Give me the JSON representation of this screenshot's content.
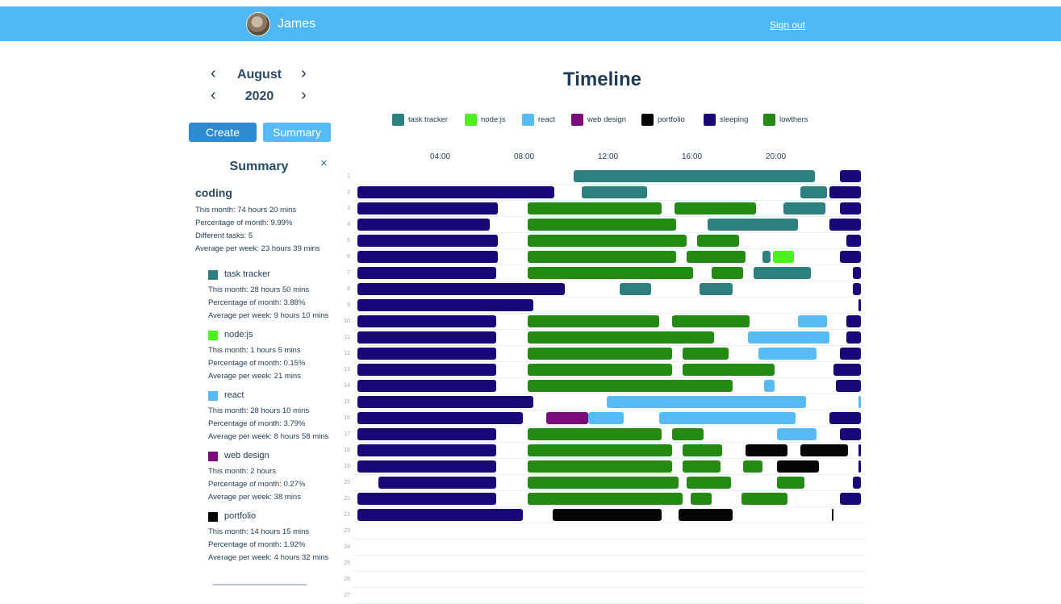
{
  "header": {
    "username": "James",
    "sign_out": "Sign out"
  },
  "sidebar": {
    "month": "August",
    "year": "2020",
    "prev_icon": "‹",
    "next_icon": "›",
    "create_label": "Create",
    "summary_label": "Summary",
    "summary_title": "Summary",
    "close_icon": "×",
    "category": {
      "name": "coding",
      "this_month": "This month: 74 hours 20 mins",
      "percentage": "Percentage of month: 9.99%",
      "different_tasks": "Different tasks: 5",
      "avg_week": "Average per week: 23 hours 39 mins"
    },
    "projects": [
      {
        "name": "task tracker",
        "color": "#2e8080",
        "this_month": "This month: 28 hours 50 mins",
        "percentage": "Percentage of month: 3.88%",
        "avg_week": "Average per week: 9 hours 10 mins"
      },
      {
        "name": "node:js",
        "color": "#4cf21b",
        "this_month": "This month: 1 hours 5 mins",
        "percentage": "Percentage of month: 0.15%",
        "avg_week": "Average per week: 21 mins"
      },
      {
        "name": "react",
        "color": "#55bbf5",
        "this_month": "This month: 28 hours 10 mins",
        "percentage": "Percentage of month: 3.79%",
        "avg_week": "Average per week: 8 hours 58 mins"
      },
      {
        "name": "web design",
        "color": "#7d0a7d",
        "this_month": "This month: 2 hours",
        "percentage": "Percentage of month: 0.27%",
        "avg_week": "Average per week: 38 mins"
      },
      {
        "name": "portfolio",
        "color": "#050505",
        "this_month": "This month: 14 hours 15 mins",
        "percentage": "Percentage of month: 1.92%",
        "avg_week": "Average per week: 4 hours 32 mins"
      }
    ]
  },
  "main": {
    "title": "Timeline",
    "legend": [
      {
        "name": "task tracker",
        "color": "#2e8080"
      },
      {
        "name": "node:js",
        "color": "#4cf21b"
      },
      {
        "name": "react",
        "color": "#55bbf5"
      },
      {
        "name": "web design",
        "color": "#7d0a7d"
      },
      {
        "name": "portfolio",
        "color": "#050505"
      },
      {
        "name": "sleeping",
        "color": "#17087a"
      },
      {
        "name": "lowthers",
        "color": "#238a12"
      }
    ],
    "hour_labels": [
      "04:00",
      "08:00",
      "12:00",
      "16:00",
      "20:00"
    ]
  },
  "chart_data": {
    "type": "bar",
    "x_unit": "hour of day",
    "xlim": [
      0,
      24.5
    ],
    "days": [
      {
        "day": 1,
        "blocks": [
          [
            "task tracker",
            10.3,
            21.8
          ],
          [
            "sleeping",
            23.0,
            24.0
          ]
        ]
      },
      {
        "day": 2,
        "blocks": [
          [
            "sleeping",
            0.0,
            9.4
          ],
          [
            "task tracker",
            10.7,
            13.8
          ],
          [
            "task tracker",
            21.1,
            22.4
          ],
          [
            "sleeping",
            22.5,
            24.0
          ]
        ]
      },
      {
        "day": 3,
        "blocks": [
          [
            "sleeping",
            0.0,
            6.7
          ],
          [
            "lowthers",
            8.1,
            14.5
          ],
          [
            "lowthers",
            15.1,
            19.0
          ],
          [
            "task tracker",
            20.3,
            22.3
          ],
          [
            "sleeping",
            23.0,
            24.0
          ]
        ]
      },
      {
        "day": 4,
        "blocks": [
          [
            "sleeping",
            0.0,
            6.3
          ],
          [
            "lowthers",
            8.1,
            15.2
          ],
          [
            "task tracker",
            16.7,
            21.0
          ],
          [
            "sleeping",
            22.5,
            24.0
          ]
        ]
      },
      {
        "day": 5,
        "blocks": [
          [
            "sleeping",
            0.0,
            6.7
          ],
          [
            "lowthers",
            8.1,
            15.7
          ],
          [
            "lowthers",
            16.2,
            18.2
          ],
          [
            "sleeping",
            23.3,
            24.0
          ]
        ]
      },
      {
        "day": 6,
        "blocks": [
          [
            "sleeping",
            0.0,
            6.7
          ],
          [
            "lowthers",
            8.1,
            15.2
          ],
          [
            "lowthers",
            15.7,
            18.5
          ],
          [
            "task tracker",
            19.3,
            19.7
          ],
          [
            "node:js",
            19.8,
            20.8
          ],
          [
            "sleeping",
            23.0,
            24.0
          ]
        ]
      },
      {
        "day": 7,
        "blocks": [
          [
            "sleeping",
            0.0,
            6.6
          ],
          [
            "lowthers",
            8.1,
            16.0
          ],
          [
            "lowthers",
            16.9,
            18.4
          ],
          [
            "task tracker",
            18.9,
            21.6
          ],
          [
            "sleeping",
            23.6,
            24.0
          ]
        ]
      },
      {
        "day": 8,
        "blocks": [
          [
            "sleeping",
            0.0,
            9.9
          ],
          [
            "task tracker",
            12.5,
            14.0
          ],
          [
            "task tracker",
            16.3,
            17.9
          ],
          [
            "sleeping",
            23.6,
            24.0
          ]
        ]
      },
      {
        "day": 9,
        "blocks": [
          [
            "sleeping",
            0.0,
            8.4
          ],
          [
            "sleeping",
            23.9,
            24.0
          ]
        ]
      },
      {
        "day": 10,
        "blocks": [
          [
            "sleeping",
            0.0,
            6.6
          ],
          [
            "lowthers",
            8.1,
            14.4
          ],
          [
            "lowthers",
            15.0,
            18.7
          ],
          [
            "react",
            21.0,
            22.4
          ],
          [
            "sleeping",
            23.3,
            24.0
          ]
        ]
      },
      {
        "day": 11,
        "blocks": [
          [
            "sleeping",
            0.0,
            6.6
          ],
          [
            "lowthers",
            8.1,
            17.0
          ],
          [
            "react",
            18.6,
            22.5
          ],
          [
            "sleeping",
            23.3,
            24.0
          ]
        ]
      },
      {
        "day": 12,
        "blocks": [
          [
            "sleeping",
            0.0,
            6.6
          ],
          [
            "lowthers",
            8.1,
            15.0
          ],
          [
            "lowthers",
            15.5,
            17.7
          ],
          [
            "react",
            19.1,
            21.9
          ],
          [
            "sleeping",
            23.0,
            24.0
          ]
        ]
      },
      {
        "day": 13,
        "blocks": [
          [
            "sleeping",
            0.0,
            6.6
          ],
          [
            "lowthers",
            8.1,
            15.0
          ],
          [
            "lowthers",
            15.5,
            19.9
          ],
          [
            "sleeping",
            22.7,
            24.0
          ]
        ]
      },
      {
        "day": 14,
        "blocks": [
          [
            "sleeping",
            0.0,
            6.6
          ],
          [
            "lowthers",
            8.1,
            17.9
          ],
          [
            "react",
            19.4,
            19.9
          ],
          [
            "sleeping",
            22.8,
            24.0
          ]
        ]
      },
      {
        "day": 15,
        "blocks": [
          [
            "sleeping",
            0.0,
            8.4
          ],
          [
            "react",
            11.9,
            21.4
          ],
          [
            "react",
            23.9,
            24.0
          ]
        ]
      },
      {
        "day": 16,
        "blocks": [
          [
            "sleeping",
            0.0,
            7.9
          ],
          [
            "web design",
            9.0,
            11.0
          ],
          [
            "react",
            11.0,
            12.7
          ],
          [
            "react",
            14.4,
            20.9
          ],
          [
            "sleeping",
            22.5,
            24.0
          ]
        ]
      },
      {
        "day": 17,
        "blocks": [
          [
            "sleeping",
            0.0,
            6.6
          ],
          [
            "lowthers",
            8.1,
            14.5
          ],
          [
            "lowthers",
            15.0,
            16.5
          ],
          [
            "react",
            20.0,
            21.9
          ],
          [
            "sleeping",
            23.0,
            24.0
          ]
        ]
      },
      {
        "day": 18,
        "blocks": [
          [
            "sleeping",
            0.0,
            6.6
          ],
          [
            "lowthers",
            8.1,
            15.0
          ],
          [
            "lowthers",
            15.5,
            17.4
          ],
          [
            "portfolio",
            18.5,
            20.5
          ],
          [
            "portfolio",
            21.1,
            23.4
          ],
          [
            "sleeping",
            23.9,
            24.0
          ]
        ]
      },
      {
        "day": 19,
        "blocks": [
          [
            "sleeping",
            0.0,
            6.6
          ],
          [
            "lowthers",
            8.1,
            15.0
          ],
          [
            "lowthers",
            15.5,
            17.3
          ],
          [
            "lowthers",
            18.4,
            19.3
          ],
          [
            "portfolio",
            20.0,
            22.0
          ],
          [
            "sleeping",
            23.9,
            24.0
          ]
        ]
      },
      {
        "day": 20,
        "blocks": [
          [
            "sleeping",
            1.0,
            6.6
          ],
          [
            "lowthers",
            8.1,
            15.3
          ],
          [
            "lowthers",
            15.7,
            17.8
          ],
          [
            "lowthers",
            20.0,
            21.3
          ],
          [
            "sleeping",
            23.6,
            24.0
          ]
        ]
      },
      {
        "day": 21,
        "blocks": [
          [
            "sleeping",
            0.0,
            6.6
          ],
          [
            "lowthers",
            8.1,
            15.5
          ],
          [
            "lowthers",
            15.9,
            16.9
          ],
          [
            "lowthers",
            18.3,
            20.5
          ],
          [
            "sleeping",
            23.0,
            24.0
          ]
        ]
      },
      {
        "day": 22,
        "blocks": [
          [
            "sleeping",
            0.0,
            7.9
          ],
          [
            "portfolio",
            9.3,
            14.5
          ],
          [
            "portfolio",
            15.3,
            17.9
          ],
          [
            "portfolio",
            22.6,
            22.7
          ]
        ]
      },
      {
        "day": 23,
        "blocks": []
      },
      {
        "day": 24,
        "blocks": []
      },
      {
        "day": 25,
        "blocks": []
      },
      {
        "day": 26,
        "blocks": []
      },
      {
        "day": 27,
        "blocks": []
      }
    ]
  }
}
